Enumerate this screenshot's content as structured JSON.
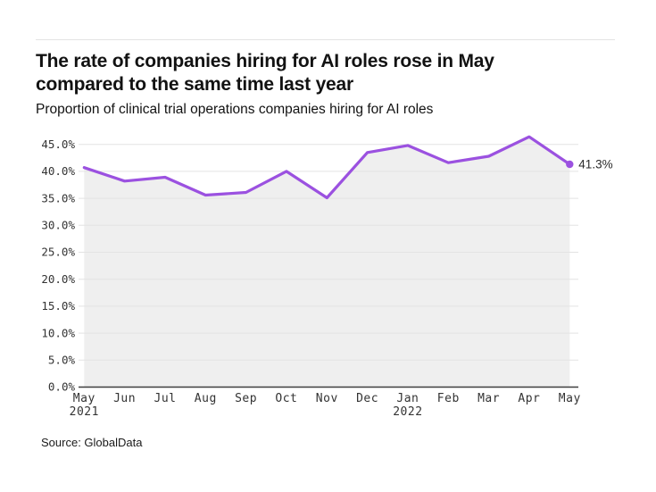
{
  "header": {
    "title": "The rate of companies hiring for AI roles rose in May compared to the same time last year",
    "subtitle": "Proportion of clinical trial operations companies hiring for AI roles"
  },
  "source": "Source: GlobalData",
  "chart_data": {
    "type": "area",
    "title": "The rate of companies hiring for AI roles rose in May compared to the same time last year",
    "subtitle": "Proportion of clinical trial operations companies hiring for AI roles",
    "categories": [
      "May",
      "Jun",
      "Jul",
      "Aug",
      "Sep",
      "Oct",
      "Nov",
      "Dec",
      "Jan",
      "Feb",
      "Mar",
      "Apr",
      "May"
    ],
    "category_sublabels": [
      "2021",
      "",
      "",
      "",
      "",
      "",
      "",
      "",
      "2022",
      "",
      "",
      "",
      ""
    ],
    "values": [
      40.7,
      38.2,
      38.9,
      35.6,
      36.1,
      40.0,
      35.1,
      43.5,
      44.8,
      41.6,
      42.8,
      46.4,
      41.3
    ],
    "end_point_label": "41.3%",
    "xlabel": "",
    "ylabel": "",
    "ylim": [
      0,
      45
    ],
    "ytick_labels": [
      "0.0%",
      "5.0%",
      "10.0%",
      "15.0%",
      "20.0%",
      "25.0%",
      "30.0%",
      "35.0%",
      "40.0%",
      "45.0%"
    ],
    "grid": true,
    "legend": "none",
    "colors": {
      "line": "#9b51e0",
      "area_fill": "#efefef",
      "gridline": "#e3e3e3",
      "axis": "#3f3f3f",
      "tick_text": "#333333"
    }
  }
}
